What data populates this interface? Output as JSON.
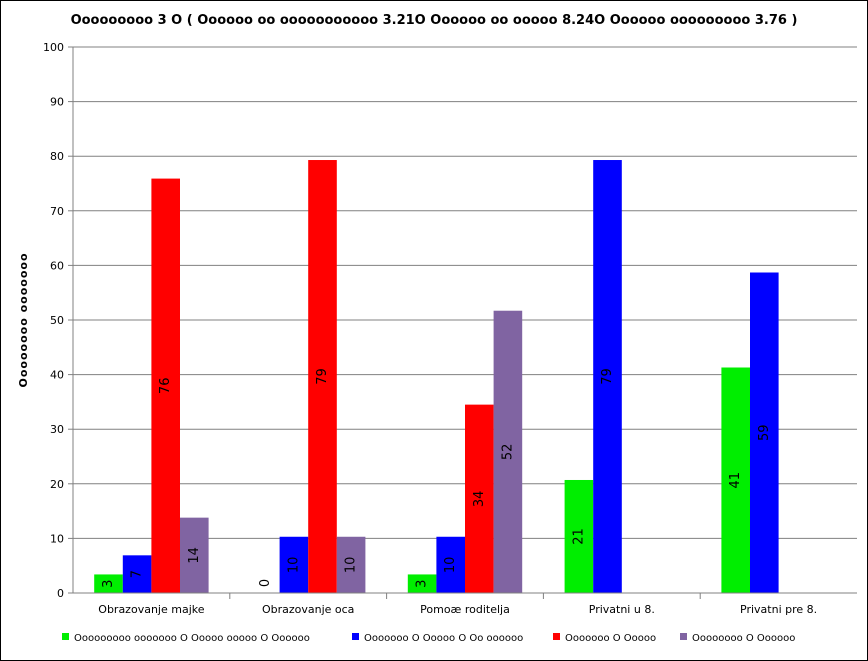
{
  "chart_data": {
    "type": "bar",
    "title": "Ooooooooo 3 O ( Oooooo oo ooooooooooo 3.21O Oooooo oo ooooo  8.24O Oooooo ooooooooo  3.76 )",
    "xlabel": "",
    "ylabel": "Oooooooo ooooooo",
    "ylim": [
      0,
      100
    ],
    "yticks": [
      0,
      10,
      20,
      30,
      40,
      50,
      60,
      70,
      80,
      90,
      100
    ],
    "grid": true,
    "legend_position": "bottom",
    "categories": [
      "Obrazovanje majke",
      "Obrazovanje oca",
      "Pomoæ roditelja",
      "Privatni u 8.",
      "Privatni pre 8."
    ],
    "series": [
      {
        "name": "Ooooooooo ooooooo O Ooooo ooooo O Oooooo",
        "color": "#00ee00",
        "values": [
          3.4,
          0,
          3.4,
          20.7,
          41.3
        ],
        "labels": [
          "3",
          "0",
          "3",
          "21",
          "41"
        ]
      },
      {
        "name": "Ooooooo O Ooooo O Oo oooooo",
        "color": "#0000ff",
        "values": [
          6.9,
          10.3,
          10.3,
          79.3,
          58.7
        ],
        "labels": [
          "7",
          "10",
          "10",
          "79",
          "59"
        ]
      },
      {
        "name": "Ooooooo O Ooooo",
        "color": "#ff0000",
        "values": [
          75.9,
          79.3,
          34.5,
          null,
          null
        ],
        "labels": [
          "76",
          "79",
          "34",
          "",
          ""
        ]
      },
      {
        "name": "Oooooooo O Oooooo",
        "color": "#8064a2",
        "values": [
          13.8,
          10.3,
          51.7,
          null,
          null
        ],
        "labels": [
          "14",
          "10",
          "52",
          "",
          ""
        ]
      }
    ]
  }
}
